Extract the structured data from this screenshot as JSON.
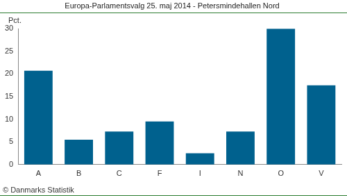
{
  "chart_data": {
    "type": "bar",
    "title": "Europa-Parlamentsvalg 25. maj 2014 - Petersmindehallen Nord",
    "ylabel": "Pct.",
    "annotation": "© Danmarks Statistik",
    "categories": [
      "A",
      "B",
      "C",
      "F",
      "I",
      "N",
      "O",
      "V"
    ],
    "values": [
      20.7,
      5.5,
      7.3,
      9.5,
      2.5,
      7.3,
      30.0,
      17.5
    ],
    "color": "#00618e",
    "ylim": [
      0,
      30
    ],
    "yticks": [
      0,
      5,
      10,
      15,
      20,
      25,
      30
    ],
    "grid": false
  }
}
